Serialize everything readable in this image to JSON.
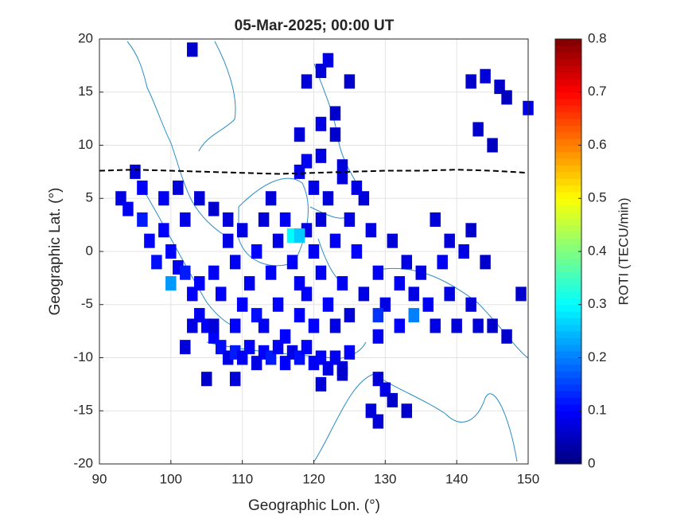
{
  "chart_data": {
    "type": "scatter",
    "title": "05-Mar-2025; 00:00 UT",
    "x_label": "Geographic Lon. (°)",
    "y_label": "Geographic Lat. (°)",
    "colorbar_label": "ROTI (TECU/min)",
    "xlim": [
      90,
      150
    ],
    "xticks": [
      90,
      100,
      110,
      120,
      130,
      140,
      150
    ],
    "ylim": [
      -20,
      20
    ],
    "yticks": [
      -20,
      -15,
      -10,
      -5,
      0,
      5,
      10,
      15,
      20
    ],
    "clim": [
      0,
      0.8
    ],
    "cticks": [
      0,
      0.1,
      0.2,
      0.3,
      0.4,
      0.5,
      0.6,
      0.7,
      0.8
    ],
    "colormap": "jet",
    "grid": true,
    "x": [
      103,
      122,
      121,
      125,
      119,
      123,
      118,
      121,
      123,
      142,
      144,
      146,
      147,
      150,
      143,
      145,
      121,
      119,
      118,
      124,
      93,
      94,
      95,
      96,
      96,
      97,
      98,
      99,
      99,
      100,
      100,
      101,
      102,
      103,
      102,
      104,
      105,
      103,
      104,
      106,
      101,
      106,
      107,
      108,
      109,
      110,
      111,
      112,
      113,
      114,
      115,
      116,
      117,
      118,
      119,
      120,
      121,
      122,
      123,
      124,
      125,
      102,
      105,
      109,
      121,
      124,
      129,
      130,
      131,
      128,
      133,
      129,
      104,
      106,
      107,
      108,
      108,
      109,
      110,
      110,
      111,
      112,
      112,
      113,
      114,
      115,
      115,
      116,
      117,
      117,
      118,
      118,
      119,
      119,
      120,
      120,
      121,
      121,
      122,
      122,
      123,
      123,
      124,
      125,
      125,
      126,
      127,
      127,
      128,
      129,
      129,
      130,
      131,
      132,
      132,
      133,
      134,
      134,
      135,
      136,
      137,
      137,
      138,
      139,
      139,
      140,
      141,
      142,
      142,
      143,
      144,
      145,
      147,
      149,
      113,
      109,
      124,
      126,
      120,
      114,
      116,
      106,
      118,
      129
    ],
    "y": [
      19,
      18,
      17,
      16,
      16,
      13,
      11,
      12,
      11,
      16,
      16.5,
      15.5,
      14.5,
      13.5,
      11.5,
      10,
      9,
      8.5,
      7.5,
      8,
      5,
      4,
      7.5,
      6,
      3,
      1,
      -1,
      5,
      2,
      -3,
      0,
      -1.5,
      3,
      -4,
      -2,
      -6,
      -7,
      -7,
      5,
      4,
      6,
      -8,
      -9,
      -10,
      -9.5,
      -10,
      -9,
      -10.5,
      -9.5,
      -10,
      -9,
      -10.5,
      -9.5,
      -10,
      -9,
      -10.5,
      -10,
      -11,
      -10,
      -11,
      -9.5,
      -9,
      -12,
      -12,
      -12.5,
      -11.5,
      -12,
      -13,
      -14,
      -15,
      -15,
      -16,
      -3,
      -2,
      -4,
      1,
      3,
      -1,
      -5,
      2,
      -3,
      0,
      -6,
      3,
      -2,
      -5,
      1,
      3,
      -1,
      1.5,
      -3,
      -6,
      2,
      -4,
      0,
      -7,
      3,
      -2,
      -5,
      5,
      1,
      -7,
      -3,
      3,
      -6,
      0,
      -4,
      5,
      2,
      -2,
      -8,
      -5,
      1,
      -3,
      -7,
      -1,
      -4,
      -6,
      -2,
      -5,
      3,
      -7,
      -1,
      -4,
      1,
      -7,
      0,
      -5,
      2,
      -7,
      -1,
      -7,
      -8,
      -4,
      -7,
      -7,
      7,
      6,
      6,
      5,
      -8,
      -7,
      1.5,
      -6
    ],
    "values": [
      0.06,
      0.08,
      0.07,
      0.06,
      0.07,
      0.06,
      0.07,
      0.08,
      0.06,
      0.06,
      0.07,
      0.06,
      0.05,
      0.08,
      0.06,
      0.05,
      0.08,
      0.09,
      0.08,
      0.07,
      0.08,
      0.09,
      0.07,
      0.1,
      0.12,
      0.1,
      0.11,
      0.09,
      0.1,
      0.22,
      0.1,
      0.09,
      0.08,
      0.1,
      0.12,
      0.09,
      0.1,
      0.08,
      0.07,
      0.06,
      0.07,
      0.1,
      0.11,
      0.08,
      0.12,
      0.09,
      0.1,
      0.08,
      0.1,
      0.12,
      0.09,
      0.1,
      0.08,
      0.11,
      0.1,
      0.09,
      0.1,
      0.08,
      0.09,
      0.07,
      0.1,
      0.07,
      0.06,
      0.07,
      0.07,
      0.06,
      0.07,
      0.08,
      0.06,
      0.07,
      0.06,
      0.07,
      0.1,
      0.09,
      0.1,
      0.08,
      0.07,
      0.09,
      0.1,
      0.08,
      0.09,
      0.1,
      0.11,
      0.07,
      0.09,
      0.1,
      0.08,
      0.09,
      0.1,
      0.3,
      0.09,
      0.1,
      0.08,
      0.1,
      0.09,
      0.1,
      0.07,
      0.09,
      0.1,
      0.07,
      0.09,
      0.08,
      0.09,
      0.08,
      0.07,
      0.1,
      0.08,
      0.07,
      0.08,
      0.09,
      0.09,
      0.08,
      0.07,
      0.09,
      0.1,
      0.08,
      0.08,
      0.2,
      0.08,
      0.09,
      0.07,
      0.08,
      0.09,
      0.08,
      0.07,
      0.07,
      0.08,
      0.07,
      0.06,
      0.07,
      0.06,
      0.06,
      0.06,
      0.06,
      0.09,
      0.1,
      0.07,
      0.08,
      0.08,
      0.07,
      0.1,
      0.07,
      0.26,
      0.14
    ],
    "line": {
      "x": [
        90,
        95,
        100,
        105,
        110,
        115,
        120,
        125,
        130,
        135,
        140,
        145,
        150
      ],
      "y": [
        7.6,
        7.7,
        7.6,
        7.5,
        7.4,
        7.3,
        7.4,
        7.5,
        7.6,
        7.6,
        7.7,
        7.6,
        7.4
      ]
    }
  }
}
